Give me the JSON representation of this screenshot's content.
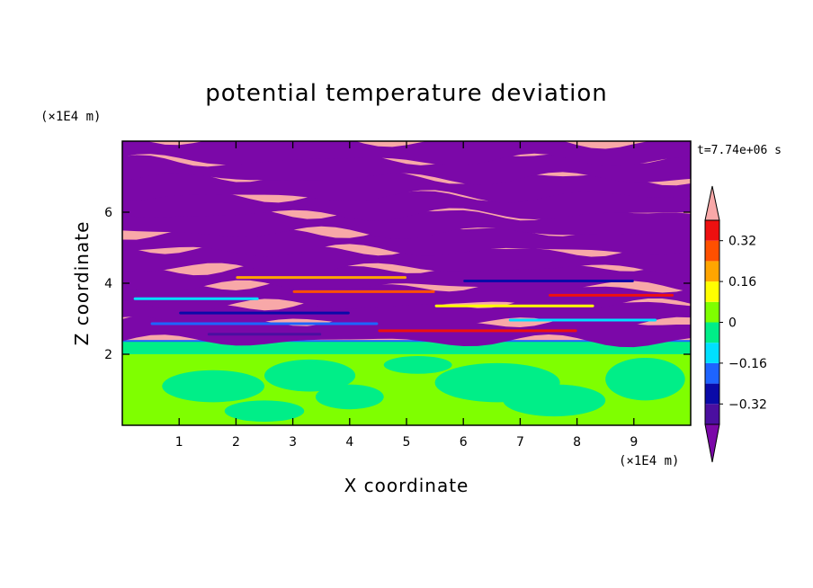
{
  "chart_data": {
    "type": "heatmap",
    "title": "potential temperature deviation",
    "xlabel": "X coordinate",
    "ylabel": "Z coordinate",
    "x_unit": "(×1E4 m)",
    "y_unit": "(×1E4 m)",
    "time_label": "t=7.74e+06 s",
    "xlim": [
      0,
      10
    ],
    "ylim": [
      0,
      8
    ],
    "x_ticks": [
      "1",
      "2",
      "3",
      "4",
      "5",
      "6",
      "7",
      "8",
      "9"
    ],
    "y_ticks": [
      "2",
      "4",
      "6"
    ],
    "colorbar": {
      "levels": [
        -0.4,
        -0.32,
        -0.24,
        -0.16,
        -0.08,
        0,
        0.08,
        0.16,
        0.24,
        0.32,
        0.4
      ],
      "tick_labels": [
        "0.32",
        "0.16",
        "0",
        "−0.16",
        "−0.32"
      ],
      "tick_values": [
        0.32,
        0.16,
        0,
        -0.16,
        -0.32
      ],
      "colors": [
        "#7b08a8",
        "#4b0fa0",
        "#0a0aa8",
        "#1e64ff",
        "#00e0ff",
        "#00ee88",
        "#7fff00",
        "#ffff00",
        "#ffa500",
        "#ff5000",
        "#ee1010",
        "#f8a8a8"
      ],
      "extend": "both"
    },
    "regions": {
      "lower_layer_z_max": 2.0,
      "transition_z": [
        2.0,
        2.4
      ],
      "banded_layer_z_min": 2.4
    },
    "grid": false
  }
}
